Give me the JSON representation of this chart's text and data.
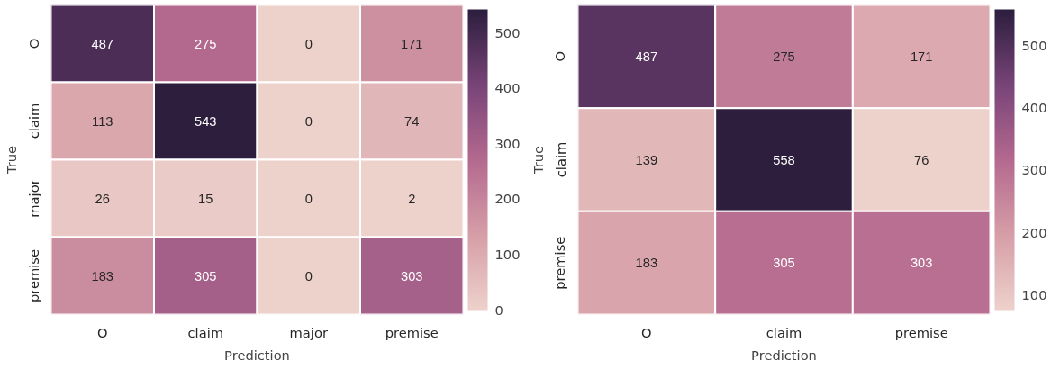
{
  "chart_data": [
    {
      "type": "heatmap",
      "xlabel": "Prediction",
      "ylabel": "True",
      "categories": [
        "O",
        "claim",
        "major",
        "premise"
      ],
      "y_categories": [
        "O",
        "claim",
        "major",
        "premise"
      ],
      "cells": [
        [
          487,
          275,
          0,
          171
        ],
        [
          113,
          543,
          0,
          74
        ],
        [
          26,
          15,
          0,
          2
        ],
        [
          183,
          305,
          0,
          303
        ]
      ],
      "clim": [
        0,
        543
      ],
      "cticks": [
        0,
        100,
        200,
        300,
        400,
        500
      ],
      "data_labels": true
    },
    {
      "type": "heatmap",
      "xlabel": "Prediction",
      "ylabel": "True",
      "categories": [
        "O",
        "claim",
        "premise"
      ],
      "y_categories": [
        "O",
        "claim",
        "premise"
      ],
      "cells": [
        [
          487,
          275,
          171
        ],
        [
          139,
          558,
          76
        ],
        [
          183,
          305,
          303
        ]
      ],
      "clim": [
        76,
        558
      ],
      "cticks": [
        100,
        200,
        300,
        400,
        500
      ],
      "data_labels": true
    }
  ]
}
